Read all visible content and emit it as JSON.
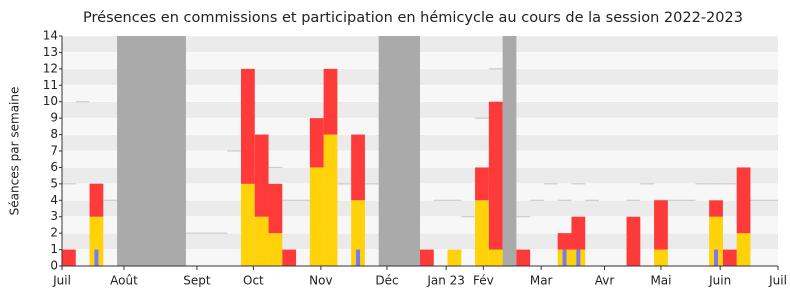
{
  "chart_data": {
    "type": "bar",
    "title": "Présences en commissions et participation en hémicycle au cours de la session 2022-2023",
    "y_label": "Séances par semaine",
    "xlim": [
      0,
      52
    ],
    "xticks": [
      {
        "value": 0,
        "label": "Juil"
      },
      {
        "value": 4.5,
        "label": "Août"
      },
      {
        "value": 9.8,
        "label": "Sept"
      },
      {
        "value": 13.9,
        "label": "Oct"
      },
      {
        "value": 18.8,
        "label": "Nov"
      },
      {
        "value": 23.6,
        "label": "Déc"
      },
      {
        "value": 27.9,
        "label": "Jan 23"
      },
      {
        "value": 30.6,
        "label": "Fév"
      },
      {
        "value": 34.8,
        "label": "Mar"
      },
      {
        "value": 39.4,
        "label": "Avr"
      },
      {
        "value": 43.5,
        "label": "Mai"
      },
      {
        "value": 47.8,
        "label": "Juin"
      },
      {
        "value": 52,
        "label": "Juil"
      }
    ],
    "ylim": [
      0,
      14
    ],
    "yticks": [
      0,
      1,
      2,
      3,
      4,
      5,
      6,
      7,
      8,
      9,
      10,
      11,
      12,
      13,
      14
    ],
    "grid": true,
    "vacation_weeks": [
      [
        4,
        9
      ],
      [
        23,
        26
      ],
      [
        32,
        33
      ]
    ],
    "vacation_color": "#aaaaaa",
    "series": [
      {
        "color": "#ffd20a",
        "values": [
          0,
          0,
          3,
          0,
          0,
          0,
          0,
          0,
          0,
          0,
          0,
          0,
          0,
          5,
          3,
          2,
          0,
          0,
          6,
          8,
          0,
          4,
          0,
          0,
          0,
          0,
          0,
          0,
          1,
          0,
          4,
          1,
          0,
          0,
          0,
          0,
          1,
          1,
          0,
          0,
          0,
          0,
          0,
          1,
          0,
          0,
          0,
          3,
          0,
          2,
          0,
          0
        ]
      },
      {
        "color": "#ff3a3a",
        "values": [
          1,
          0,
          2,
          0,
          0,
          0,
          0,
          0,
          0,
          0,
          0,
          0,
          0,
          7,
          5,
          3,
          1,
          0,
          3,
          4,
          0,
          4,
          0,
          0,
          0,
          0,
          1,
          0,
          0,
          0,
          2,
          9,
          0,
          1,
          0,
          0,
          1,
          2,
          0,
          0,
          0,
          3,
          0,
          3,
          0,
          0,
          0,
          1,
          1,
          4,
          0,
          0
        ]
      }
    ],
    "inner_series": {
      "color": "#7a7aee",
      "values": [
        0,
        0,
        1,
        0,
        0,
        0,
        0,
        0,
        0,
        0,
        0,
        0,
        0,
        0,
        0,
        0,
        0,
        0,
        0,
        0,
        0,
        1,
        0,
        0,
        0,
        0,
        0,
        0,
        0,
        0,
        0,
        0,
        0,
        0,
        0,
        0,
        1,
        1,
        0,
        0,
        0,
        0,
        0,
        0,
        0,
        0,
        0,
        1,
        0,
        0,
        0,
        0
      ]
    },
    "median": {
      "color": "#cccccc",
      "values": [
        5,
        10,
        5,
        4,
        null,
        null,
        null,
        null,
        null,
        2,
        2,
        2,
        7,
        6,
        6,
        6,
        4,
        4,
        4,
        4,
        5,
        5,
        5,
        null,
        null,
        null,
        null,
        4,
        4,
        3,
        9,
        12,
        null,
        3,
        4,
        5,
        4,
        5,
        4,
        0,
        0,
        4,
        5,
        4,
        4,
        4,
        5,
        5,
        5,
        4,
        4,
        4
      ]
    }
  }
}
